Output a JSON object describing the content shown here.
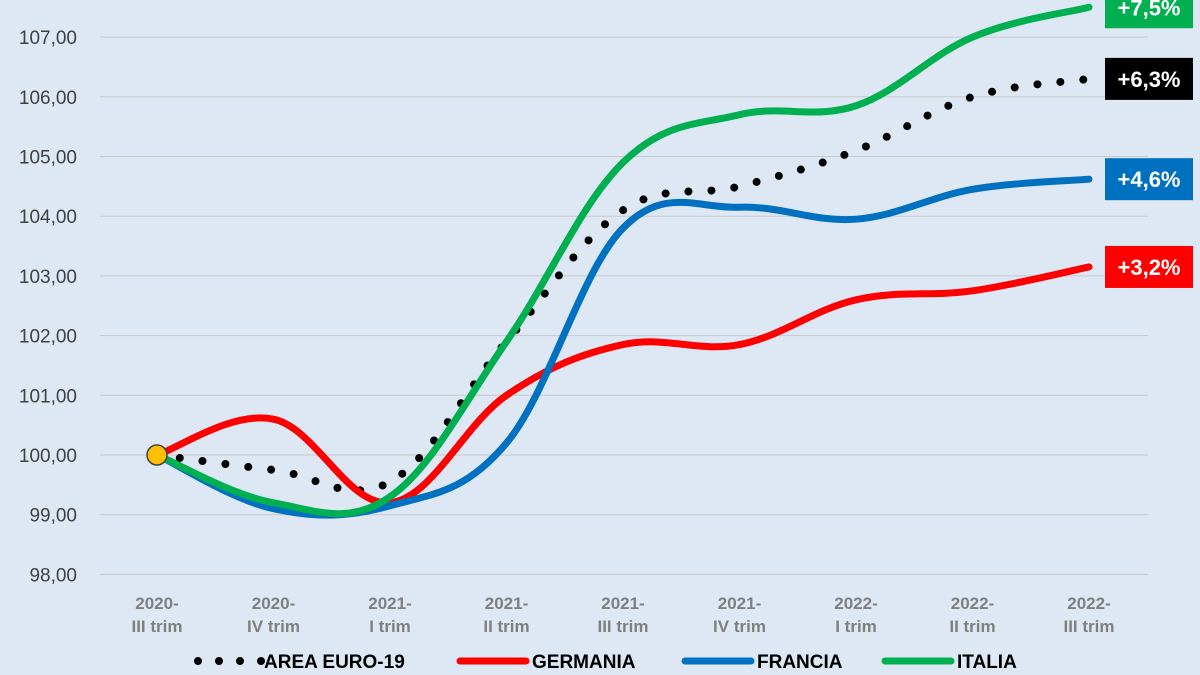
{
  "chart_data": {
    "type": "line",
    "title": "",
    "xlabel": "",
    "ylabel": "",
    "categories": [
      [
        "2020-",
        "III trim"
      ],
      [
        "2020-",
        "IV trim"
      ],
      [
        "2021-",
        "I trim"
      ],
      [
        "2021-",
        "II trim"
      ],
      [
        "2021-",
        "III trim"
      ],
      [
        "2021-",
        "IV trim"
      ],
      [
        "2022-",
        "I trim"
      ],
      [
        "2022-",
        "II trim"
      ],
      [
        "2022-",
        "III trim"
      ]
    ],
    "ylim": [
      98,
      107.5
    ],
    "yticks": [
      "98,00",
      "99,00",
      "100,00",
      "101,00",
      "102,00",
      "103,00",
      "104,00",
      "105,00",
      "106,00",
      "107,00"
    ],
    "grid": true,
    "legend_position": "bottom",
    "start_marker_color": "#ffc000",
    "series": [
      {
        "name": "AREA EURO-19",
        "color": "#000000",
        "style": "dotted",
        "values": [
          100.0,
          99.75,
          99.55,
          101.9,
          104.1,
          104.5,
          105.1,
          106.0,
          106.3
        ],
        "end_label": "+6,3%"
      },
      {
        "name": "GERMANIA",
        "color": "#ff0000",
        "style": "solid",
        "values": [
          100.0,
          100.6,
          99.2,
          101.0,
          101.85,
          101.85,
          102.6,
          102.75,
          103.15
        ],
        "end_label": "+3,2%"
      },
      {
        "name": "FRANCIA",
        "color": "#0070c0",
        "style": "solid",
        "values": [
          100.0,
          99.1,
          99.15,
          100.2,
          103.8,
          104.15,
          103.95,
          104.45,
          104.62
        ],
        "end_label": "+4,6%"
      },
      {
        "name": "ITALIA",
        "color": "#00b050",
        "style": "solid",
        "values": [
          100.0,
          99.2,
          99.3,
          101.9,
          104.9,
          105.7,
          105.85,
          107.0,
          107.5
        ],
        "end_label": "+7,5%"
      }
    ]
  }
}
